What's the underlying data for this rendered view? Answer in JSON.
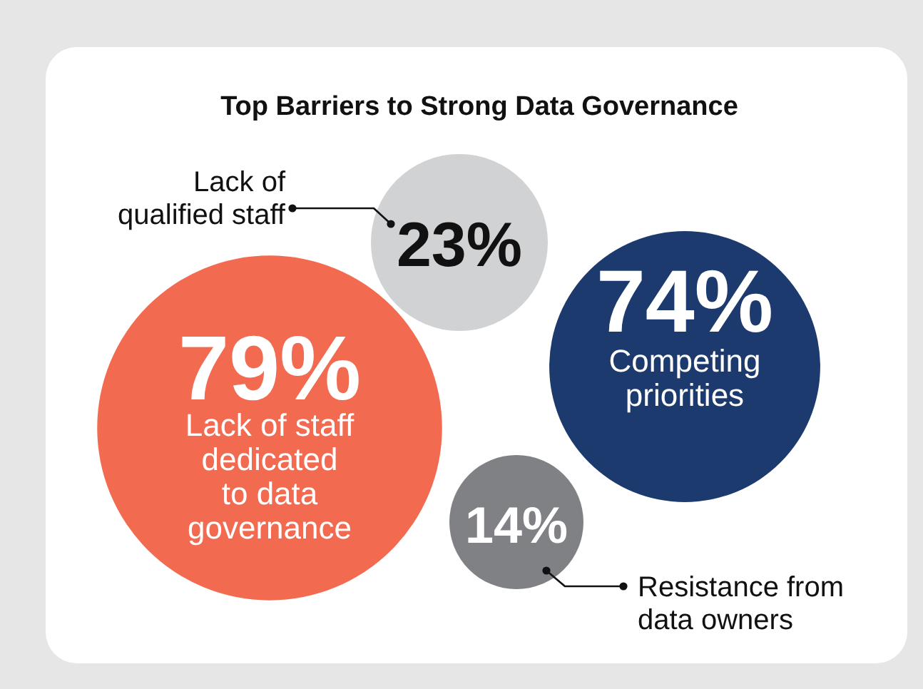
{
  "chart_data": {
    "type": "other",
    "title": "Top Barriers to Strong Data Governance",
    "categories": [
      "Lack of\nqualified staff",
      "Lack of staff\ndedicated\nto data\ngovernance",
      "Competing\npriorities",
      "Resistance from\ndata owners"
    ],
    "values": [
      23,
      79,
      74,
      14
    ],
    "value_labels": [
      "23%",
      "79%",
      "74%",
      "14%"
    ],
    "colors": [
      "#d1d2d4",
      "#f26b50",
      "#1d3a6e",
      "#808184"
    ]
  }
}
